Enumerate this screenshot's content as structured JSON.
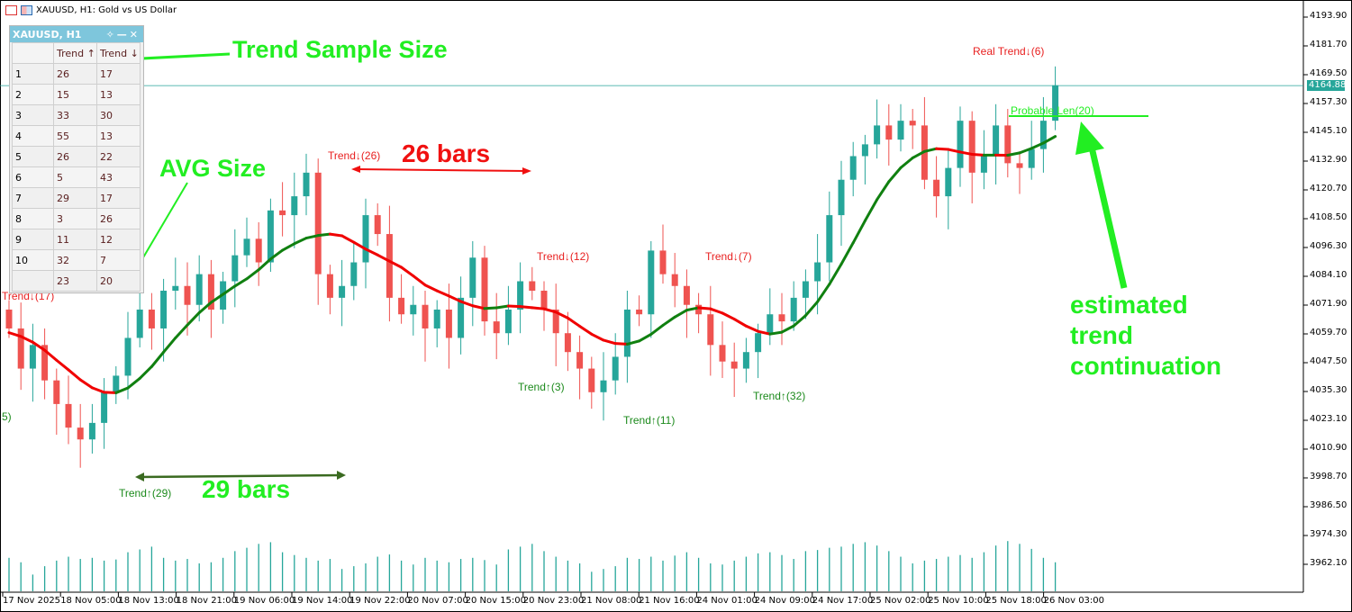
{
  "window": {
    "title": "XAUUSD, H1:  Gold vs US Dollar"
  },
  "panel": {
    "title": "XAUUSD, H1",
    "headers": [
      "",
      "Trend ↑",
      "Trend ↓"
    ],
    "rows": [
      [
        "1",
        "26",
        "17"
      ],
      [
        "2",
        "15",
        "13"
      ],
      [
        "3",
        "33",
        "30"
      ],
      [
        "4",
        "55",
        "13"
      ],
      [
        "5",
        "26",
        "22"
      ],
      [
        "6",
        "5",
        "43"
      ],
      [
        "7",
        "29",
        "17"
      ],
      [
        "8",
        "3",
        "26"
      ],
      [
        "9",
        "11",
        "12"
      ],
      [
        "10",
        "32",
        "7"
      ]
    ],
    "avg": [
      "",
      "23",
      "20"
    ]
  },
  "annotations": {
    "sample_size": "Trend Sample Size",
    "avg_size": "AVG Size",
    "bars26": "26 bars",
    "bars29": "29 bars",
    "estimated": [
      "estimated",
      "trend",
      "continuation"
    ]
  },
  "chart_data": {
    "type": "candlestick",
    "symbol": "XAUUSD",
    "timeframe": "H1",
    "current_price": "4164.88",
    "ylim": [
      3956,
      4198
    ],
    "y_ticks": [
      "4193.90",
      "4181.70",
      "4169.50",
      "4157.30",
      "4145.10",
      "4132.90",
      "4120.70",
      "4108.50",
      "4096.30",
      "4084.10",
      "4071.90",
      "4059.70",
      "4047.50",
      "4035.30",
      "4023.10",
      "4010.90",
      "3998.70",
      "3986.50",
      "3974.30",
      "3962.10"
    ],
    "x_ticks": [
      "17 Nov 2025",
      "18 Nov 05:00",
      "18 Nov 13:00",
      "18 Nov 21:00",
      "19 Nov 06:00",
      "19 Nov 14:00",
      "19 Nov 22:00",
      "20 Nov 07:00",
      "20 Nov 15:00",
      "20 Nov 23:00",
      "21 Nov 08:00",
      "21 Nov 16:00",
      "24 Nov 01:00",
      "24 Nov 09:00",
      "24 Nov 17:00",
      "25 Nov 02:00",
      "25 Nov 10:00",
      "25 Nov 18:00",
      "26 Nov 03:00"
    ],
    "closes": [
      4062,
      4045,
      4055,
      4040,
      4030,
      4020,
      4015,
      4022,
      4035,
      4042,
      4058,
      4070,
      4062,
      4078,
      4080,
      4072,
      4085,
      4070,
      4082,
      4093,
      4100,
      4090,
      4112,
      4110,
      4118,
      4128,
      4085,
      4075,
      4080,
      4090,
      4110,
      4102,
      4075,
      4068,
      4072,
      4062,
      4070,
      4058,
      4075,
      4092,
      4065,
      4060,
      4070,
      4082,
      4078,
      4070,
      4060,
      4052,
      4045,
      4035,
      4040,
      4050,
      4070,
      4068,
      4095,
      4085,
      4080,
      4072,
      4068,
      4055,
      4048,
      4045,
      4052,
      4060,
      4068,
      4065,
      4075,
      4082,
      4090,
      4110,
      4125,
      4135,
      4140,
      4148,
      4142,
      4150,
      4148,
      4125,
      4118,
      4130,
      4150,
      4128,
      4135,
      4148,
      4132,
      4130,
      4138,
      4150,
      4165
    ],
    "volume": [
      60,
      52,
      30,
      45,
      55,
      62,
      58,
      60,
      55,
      57,
      70,
      75,
      80,
      60,
      55,
      58,
      50,
      52,
      60,
      72,
      78,
      85,
      88,
      70,
      65,
      60,
      55,
      58,
      40,
      45,
      50,
      62,
      66,
      55,
      48,
      60,
      55,
      52,
      58,
      60,
      56,
      48,
      75,
      80,
      85,
      72,
      62,
      55,
      50,
      35,
      40,
      45,
      60,
      58,
      62,
      55,
      64,
      70,
      60,
      50,
      48,
      55,
      62,
      68,
      70,
      65,
      58,
      72,
      74,
      78,
      80,
      85,
      88,
      82,
      72,
      62,
      50,
      55,
      58,
      62,
      65,
      60,
      70,
      82,
      90,
      85,
      76,
      60,
      52
    ],
    "up_color": "#26a69a",
    "down_color": "#ef5350",
    "trend_labels": [
      {
        "text": "Trend↓(17)",
        "dir": "down"
      },
      {
        "text": "5)",
        "dir": "up"
      },
      {
        "text": "Trend↑(29)",
        "dir": "up"
      },
      {
        "text": "Trend↓(26)",
        "dir": "down"
      },
      {
        "text": "Trend↑(3)",
        "dir": "up"
      },
      {
        "text": "Trend↓(12)",
        "dir": "down"
      },
      {
        "text": "Trend↑(11)",
        "dir": "up"
      },
      {
        "text": "Trend↓(7)",
        "dir": "down"
      },
      {
        "text": "Trend↑(32)",
        "dir": "up"
      },
      {
        "text": "Real Trend↓(6)",
        "dir": "down"
      },
      {
        "text": "Probable Len(20)",
        "dir": "probable"
      }
    ]
  }
}
